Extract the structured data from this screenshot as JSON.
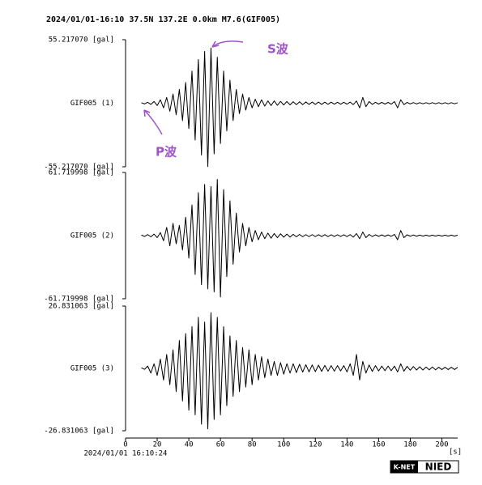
{
  "title": "2024/01/01-16:10 37.5N 137.2E 0.0km M7.6(GIF005)",
  "annotations": [
    "S波",
    "P波"
  ],
  "logo": [
    "K-NET",
    "NIED"
  ],
  "chart_data": [
    {
      "type": "line",
      "name": "GIF005 (1)",
      "color": "#000000",
      "ylim": [
        -55.21707,
        55.21707
      ],
      "yticks": [
        {
          "value": -55.21707,
          "label": "-55.217070 [gal]"
        },
        {
          "value": 55.21707,
          "label": "55.217070 [gal]"
        }
      ],
      "xlim": [
        0,
        210
      ],
      "x": [
        10,
        12,
        14,
        16,
        18,
        20,
        22,
        24,
        26,
        28,
        30,
        32,
        34,
        36,
        38,
        40,
        42,
        44,
        46,
        48,
        50,
        52,
        54,
        56,
        58,
        60,
        62,
        64,
        66,
        68,
        70,
        72,
        74,
        76,
        78,
        80,
        82,
        84,
        86,
        88,
        90,
        92,
        94,
        96,
        98,
        100,
        102,
        104,
        106,
        108,
        110,
        112,
        114,
        116,
        118,
        120,
        122,
        124,
        126,
        128,
        130,
        132,
        134,
        136,
        138,
        140,
        142,
        144,
        146,
        148,
        150,
        152,
        154,
        156,
        158,
        160,
        162,
        164,
        166,
        168,
        170,
        172,
        174,
        176,
        178,
        180,
        182,
        184,
        186,
        188,
        190,
        192,
        194,
        196,
        198,
        200,
        202,
        204,
        206,
        208,
        210
      ],
      "values": [
        0.5,
        -0.6,
        0.8,
        -1,
        1.5,
        -2,
        3,
        -4,
        5,
        -7,
        8,
        -10,
        12,
        -15,
        18,
        -22,
        28,
        -32,
        38,
        -45,
        45,
        -55,
        48,
        -44,
        40,
        -35,
        28,
        -24,
        20,
        -15,
        12,
        -9,
        8,
        -6,
        5,
        -4,
        3.5,
        -3,
        3,
        -2.5,
        2,
        -2,
        2,
        -1.8,
        1.6,
        -1.5,
        1.5,
        -1.4,
        1.3,
        -1.2,
        1.2,
        -1.2,
        1.1,
        -1,
        1,
        -1,
        1,
        -1,
        0.9,
        -0.9,
        0.9,
        -0.8,
        0.8,
        -0.8,
        0.8,
        -0.8,
        1,
        -1.2,
        2,
        -4,
        5,
        -3,
        1.5,
        -1,
        0.8,
        -0.7,
        0.7,
        -0.7,
        0.7,
        -0.8,
        1.5,
        -4,
        3,
        -1.2,
        0.7,
        -0.6,
        0.6,
        -0.6,
        0.5,
        -0.5,
        0.5,
        -0.5,
        0.5,
        -0.5,
        0.5,
        -0.5,
        0.5,
        -0.5,
        0.5,
        -0.5,
        0.5
      ]
    },
    {
      "type": "line",
      "name": "GIF005 (2)",
      "color": "#000000",
      "ylim": [
        -61.719998,
        61.719998
      ],
      "yticks": [
        {
          "value": -61.719998,
          "label": "-61.719998 [gal]"
        },
        {
          "value": 61.719998,
          "label": "61.719998 [gal]"
        }
      ],
      "xlim": [
        0,
        210
      ],
      "x": [
        10,
        12,
        14,
        16,
        18,
        20,
        22,
        24,
        26,
        28,
        30,
        32,
        34,
        36,
        38,
        40,
        42,
        44,
        46,
        48,
        50,
        52,
        54,
        56,
        58,
        60,
        62,
        64,
        66,
        68,
        70,
        72,
        74,
        76,
        78,
        80,
        82,
        84,
        86,
        88,
        90,
        92,
        94,
        96,
        98,
        100,
        102,
        104,
        106,
        108,
        110,
        112,
        114,
        116,
        118,
        120,
        122,
        124,
        126,
        128,
        130,
        132,
        134,
        136,
        138,
        140,
        142,
        144,
        146,
        148,
        150,
        152,
        154,
        156,
        158,
        160,
        162,
        164,
        166,
        168,
        170,
        172,
        174,
        176,
        178,
        180,
        182,
        184,
        186,
        188,
        190,
        192,
        194,
        196,
        198,
        200,
        202,
        204,
        206,
        208,
        210
      ],
      "values": [
        0.6,
        -0.8,
        1,
        -1.2,
        1.5,
        -2,
        3,
        -5,
        8,
        -10,
        12,
        -8,
        10,
        -14,
        18,
        -22,
        30,
        -38,
        42,
        -48,
        50,
        -52,
        48,
        -55,
        55,
        -60,
        45,
        -40,
        34,
        -28,
        22,
        -16,
        12,
        -10,
        8,
        -6,
        5,
        -4,
        3.5,
        -3,
        2.5,
        -2.5,
        2,
        -2,
        1.8,
        -1.6,
        1.5,
        -1.5,
        1.3,
        -1.2,
        1.2,
        -1.1,
        1,
        -1,
        1,
        -1,
        0.9,
        -0.9,
        0.9,
        -0.9,
        0.8,
        -0.8,
        0.8,
        -0.8,
        0.8,
        -0.9,
        1,
        -1.5,
        2,
        -3,
        3.5,
        -2,
        1.2,
        -0.9,
        0.8,
        -0.7,
        0.7,
        -0.7,
        0.7,
        -0.7,
        1.2,
        -4,
        5,
        -2,
        0.8,
        -0.6,
        0.6,
        -0.6,
        0.5,
        -0.5,
        0.5,
        -0.5,
        0.5,
        -0.5,
        0.5,
        -0.5,
        0.5,
        -0.5,
        0.5,
        -0.5,
        0.5
      ]
    },
    {
      "type": "line",
      "name": "GIF005 (3)",
      "color": "#000000",
      "ylim": [
        -26.831063,
        26.831063
      ],
      "yticks": [
        {
          "value": -26.831063,
          "label": "-26.831063 [gal]"
        },
        {
          "value": 26.831063,
          "label": "26.831063 [gal]"
        }
      ],
      "xlim": [
        0,
        210
      ],
      "xticks": [
        0,
        20,
        40,
        60,
        80,
        100,
        120,
        140,
        160,
        180,
        200
      ],
      "xlabel": "[s]",
      "x_start": "2024/01/01 16:10:24",
      "x": [
        10,
        12,
        14,
        16,
        18,
        20,
        22,
        24,
        26,
        28,
        30,
        32,
        34,
        36,
        38,
        40,
        42,
        44,
        46,
        48,
        50,
        52,
        54,
        56,
        58,
        60,
        62,
        64,
        66,
        68,
        70,
        72,
        74,
        76,
        78,
        80,
        82,
        84,
        86,
        88,
        90,
        92,
        94,
        96,
        98,
        100,
        102,
        104,
        106,
        108,
        110,
        112,
        114,
        116,
        118,
        120,
        122,
        124,
        126,
        128,
        130,
        132,
        134,
        136,
        138,
        140,
        142,
        144,
        146,
        148,
        150,
        152,
        154,
        156,
        158,
        160,
        162,
        164,
        166,
        168,
        170,
        172,
        174,
        176,
        178,
        180,
        182,
        184,
        186,
        188,
        190,
        192,
        194,
        196,
        198,
        200,
        202,
        204,
        206,
        208,
        210
      ],
      "values": [
        0.3,
        -0.4,
        1,
        -2,
        2,
        -3,
        4,
        -5,
        6,
        -7,
        8,
        -10,
        12,
        -14,
        15,
        -18,
        18,
        -20,
        22,
        -24,
        20,
        -26,
        24,
        -22,
        22,
        -20,
        18,
        -16,
        14,
        -12,
        12,
        -10,
        9,
        -8,
        8,
        -7,
        6,
        -5,
        5,
        -4,
        4,
        -3,
        3,
        -3,
        2.5,
        -2.5,
        2,
        -2,
        2,
        -1.8,
        1.8,
        -1.6,
        1.6,
        -1.5,
        1.5,
        -1.4,
        1.4,
        -1.3,
        1.3,
        -1.2,
        1.2,
        -1.2,
        1.2,
        -1.1,
        1.2,
        -1.5,
        2,
        -3,
        6,
        -5,
        3,
        -2,
        1.5,
        -1.3,
        1.2,
        -1.1,
        1,
        -1,
        1,
        -1,
        1,
        -1.5,
        2,
        -1.2,
        0.9,
        -0.8,
        0.8,
        -0.7,
        0.7,
        -0.7,
        0.6,
        -0.6,
        0.6,
        -0.6,
        0.5,
        -0.5,
        0.5,
        -0.5,
        0.5,
        -0.5,
        0.5
      ]
    }
  ]
}
